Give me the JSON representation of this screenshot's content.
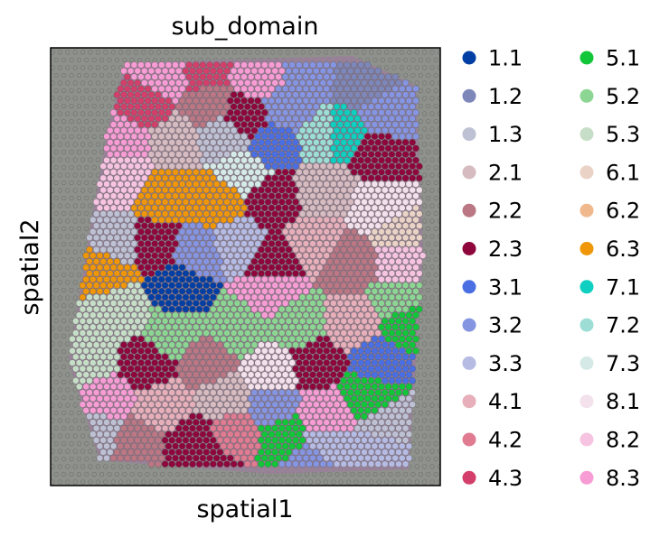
{
  "chart_data": {
    "type": "scatter",
    "title": "sub_domain",
    "xlabel": "spatial1",
    "ylabel": "spatial2",
    "grid": false,
    "legend_placement": "right",
    "legend_columns": 2,
    "background": "H&E tissue image",
    "series": [
      {
        "name": "1.1",
        "color": "#023fa5"
      },
      {
        "name": "1.2",
        "color": "#7d87b9"
      },
      {
        "name": "1.3",
        "color": "#bec1d4"
      },
      {
        "name": "2.1",
        "color": "#d6bcc0"
      },
      {
        "name": "2.2",
        "color": "#bb7784"
      },
      {
        "name": "2.3",
        "color": "#8e063b"
      },
      {
        "name": "3.1",
        "color": "#4a6fe3"
      },
      {
        "name": "3.2",
        "color": "#8595e1"
      },
      {
        "name": "3.3",
        "color": "#b5bbe3"
      },
      {
        "name": "4.1",
        "color": "#e6afb9"
      },
      {
        "name": "4.2",
        "color": "#e07b91"
      },
      {
        "name": "4.3",
        "color": "#d33f6a"
      },
      {
        "name": "5.1",
        "color": "#11c638"
      },
      {
        "name": "5.2",
        "color": "#8dd593"
      },
      {
        "name": "5.3",
        "color": "#c6dec7"
      },
      {
        "name": "6.1",
        "color": "#ead3c6"
      },
      {
        "name": "6.2",
        "color": "#f0b98d"
      },
      {
        "name": "6.3",
        "color": "#ef9708"
      },
      {
        "name": "7.1",
        "color": "#0fcfc0"
      },
      {
        "name": "7.2",
        "color": "#9cded6"
      },
      {
        "name": "7.3",
        "color": "#d5eae7"
      },
      {
        "name": "8.1",
        "color": "#f3e1eb"
      },
      {
        "name": "8.2",
        "color": "#f6c4e1"
      },
      {
        "name": "8.3",
        "color": "#f79cd4"
      }
    ]
  }
}
